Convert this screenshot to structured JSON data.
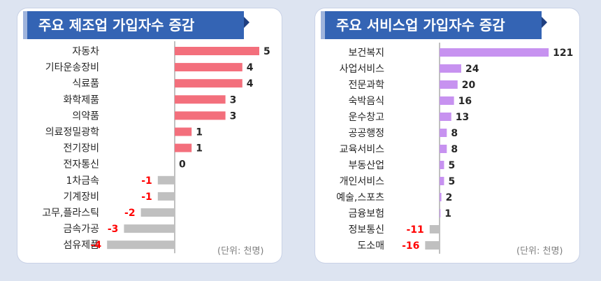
{
  "chart_data": [
    {
      "type": "bar",
      "orientation": "horizontal",
      "title": "주요 제조업 가입자수 증감",
      "unit_note": "(단위: 천명)",
      "categories": [
        "자동차",
        "기타운송장비",
        "식료품",
        "화학제품",
        "의약품",
        "의료정밀광학",
        "전기장비",
        "전자통신",
        "1차금속",
        "기계장비",
        "고무,플라스틱",
        "금속가공",
        "섬유제품"
      ],
      "values": [
        5,
        4,
        4,
        3,
        3,
        1,
        1,
        0,
        -1,
        -1,
        -2,
        -3,
        -4
      ],
      "value_labels": [
        "5",
        "4",
        "4",
        "3",
        "3",
        "1",
        "1",
        "0",
        "-1",
        "-1",
        "-2",
        "-3",
        "-4"
      ],
      "colors": {
        "positive": "#f36f7c",
        "negative": "#c0c0c0",
        "negative_label": "#ff0000",
        "positive_label": "#262626"
      },
      "grid": false
    },
    {
      "type": "bar",
      "orientation": "horizontal",
      "title": "주요 서비스업 가입자수 증감",
      "unit_note": "(단위: 천명)",
      "categories": [
        "보건복지",
        "사업서비스",
        "전문과학",
        "숙박음식",
        "운수창고",
        "공공행정",
        "교육서비스",
        "부동산업",
        "개인서비스",
        "예술,스포츠",
        "금융보험",
        "정보통신",
        "도소매"
      ],
      "values": [
        121,
        24,
        20,
        16,
        13,
        8,
        8,
        5,
        5,
        2,
        1,
        -11,
        -16
      ],
      "value_labels": [
        "121",
        "24",
        "20",
        "16",
        "13",
        "8",
        "8",
        "5",
        "5",
        "2",
        "1",
        "-11",
        "-16"
      ],
      "colors": {
        "positive": "#c792f0",
        "negative": "#c0c0c0",
        "negative_label": "#ff0000",
        "positive_label": "#262626"
      },
      "grid": false
    }
  ]
}
